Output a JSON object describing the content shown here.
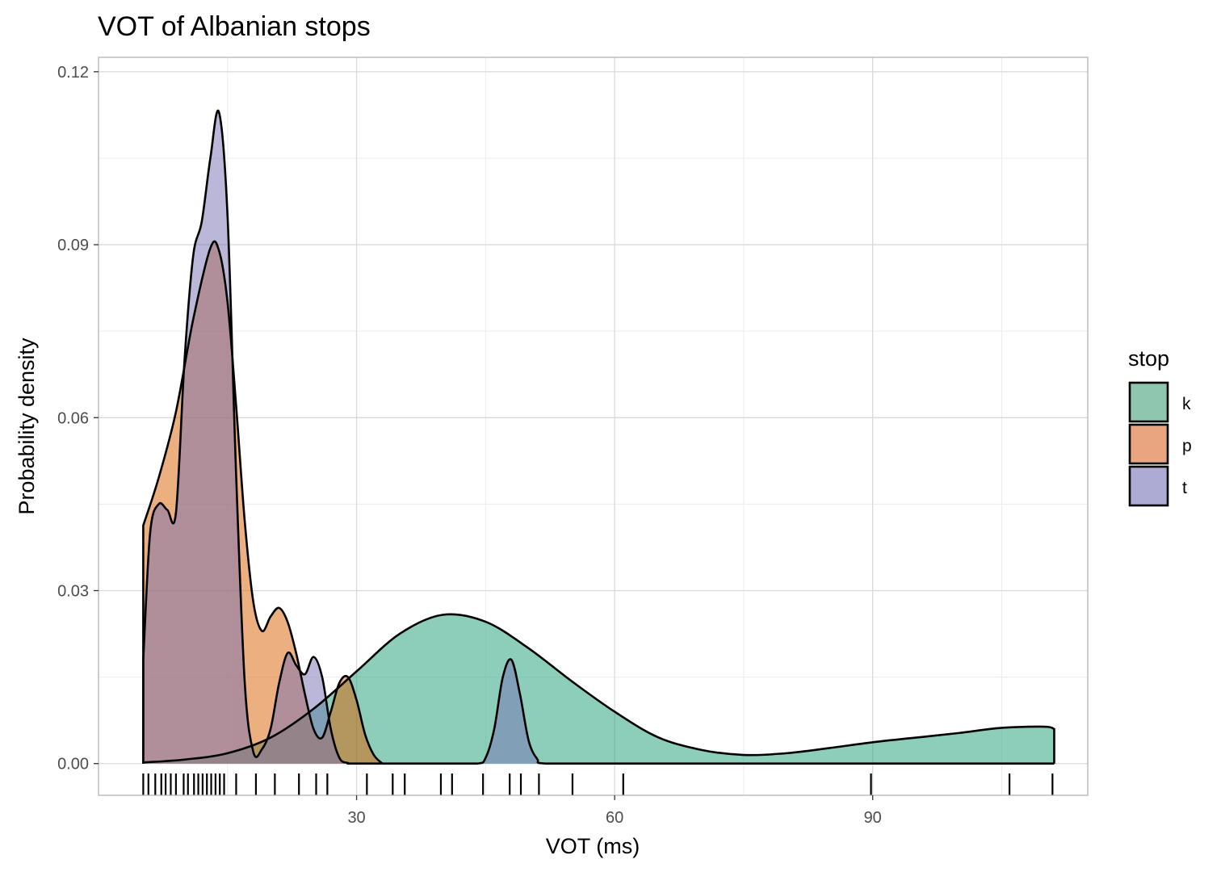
{
  "chart_data": {
    "type": "area",
    "subtype": "density",
    "title": "VOT of Albanian stops",
    "xlabel": "VOT (ms)",
    "ylabel": "Probability density",
    "xlim": [
      0,
      115
    ],
    "ylim": [
      -0.0055,
      0.1225
    ],
    "x_ticks": [
      30,
      60,
      90
    ],
    "y_ticks": [
      0.0,
      0.03,
      0.06,
      0.09,
      0.12
    ],
    "x_tick_labels": [
      "30",
      "60",
      "90"
    ],
    "y_tick_labels": [
      "0.00",
      "0.03",
      "0.06",
      "0.09",
      "0.12"
    ],
    "grid": true,
    "legend": {
      "title": "stop",
      "position": "right",
      "items": [
        {
          "label": "k",
          "color": "#8fc6b0"
        },
        {
          "label": "p",
          "color": "#e9a580"
        },
        {
          "label": "t",
          "color": "#adaad3"
        }
      ]
    },
    "series": [
      {
        "name": "k",
        "color": "#1b9e77",
        "x": [
          5.2,
          10,
          15,
          20,
          25,
          30,
          35,
          40,
          45,
          50,
          55,
          60,
          65,
          70,
          75,
          80,
          85,
          90,
          95,
          100,
          105,
          110,
          111.1
        ],
        "y": [
          0.0002,
          0.0007,
          0.0018,
          0.0045,
          0.0095,
          0.016,
          0.0225,
          0.0258,
          0.0246,
          0.02,
          0.0143,
          0.009,
          0.0046,
          0.0024,
          0.0015,
          0.0018,
          0.0027,
          0.0037,
          0.0045,
          0.0053,
          0.0062,
          0.0064,
          0.006
        ]
      },
      {
        "name": "p",
        "color": "#d95f02",
        "x": [
          5.2,
          7,
          9,
          11,
          13,
          14,
          15,
          16,
          17,
          18,
          19,
          20,
          21,
          22,
          23,
          24,
          25,
          26,
          27,
          28,
          29,
          30,
          31,
          32,
          33
        ],
        "y": [
          0.0413,
          0.0496,
          0.061,
          0.077,
          0.0894,
          0.089,
          0.08,
          0.062,
          0.042,
          0.028,
          0.023,
          0.0255,
          0.027,
          0.0245,
          0.019,
          0.012,
          0.006,
          0.0045,
          0.009,
          0.014,
          0.015,
          0.011,
          0.005,
          0.0015,
          0.0
        ]
      },
      {
        "name": "t",
        "color": "#7570b3",
        "x": [
          5.2,
          6,
          7,
          8,
          9,
          10,
          11,
          12,
          13,
          14,
          15,
          16,
          17,
          18,
          19,
          20,
          21,
          22,
          23,
          24,
          25,
          26,
          27,
          28,
          29,
          30,
          40,
          44,
          45,
          46,
          47,
          48,
          49,
          50,
          51,
          52,
          60,
          70,
          80,
          90,
          100,
          111.1
        ],
        "y": [
          0.018,
          0.04,
          0.045,
          0.044,
          0.0435,
          0.07,
          0.088,
          0.094,
          0.105,
          0.113,
          0.095,
          0.05,
          0.014,
          0.002,
          0.0025,
          0.006,
          0.014,
          0.0192,
          0.017,
          0.0155,
          0.0185,
          0.015,
          0.006,
          0.001,
          0.0001,
          0.0,
          0.0,
          0.0,
          0.001,
          0.006,
          0.015,
          0.018,
          0.012,
          0.004,
          0.0008,
          0.0,
          0.0,
          0.0,
          0.0,
          0.0,
          0.0,
          0.0
        ]
      }
    ],
    "rug": [
      5.2,
      5.8,
      6.6,
      7.3,
      7.8,
      8.4,
      9.0,
      9.9,
      10.4,
      11.1,
      11.6,
      12.1,
      12.6,
      13.1,
      13.6,
      14.1,
      14.6,
      16.0,
      18.3,
      20.5,
      23.3,
      25.3,
      26.6,
      31.2,
      34.2,
      35.6,
      39.8,
      41.1,
      44.7,
      47.8,
      49.1,
      51.2,
      55.1,
      61.0,
      89.8,
      105.9,
      110.9
    ]
  }
}
